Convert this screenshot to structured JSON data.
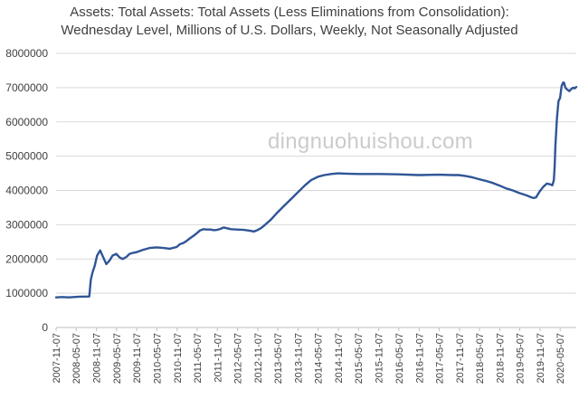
{
  "chart_data": {
    "type": "line",
    "title_line1": "Assets: Total Assets: Total Assets (Less Eliminations from Consolidation):",
    "title_line2": "Wednesday Level, Millions of U.S. Dollars, Weekly, Not Seasonally Adjusted",
    "xlabel": "",
    "ylabel": "",
    "ylim": [
      0,
      8000000
    ],
    "yticks": [
      0,
      1000000,
      2000000,
      3000000,
      4000000,
      5000000,
      6000000,
      7000000,
      8000000
    ],
    "xlim": [
      "2007-11-07",
      "2020-09-30"
    ],
    "xticks": [
      "2007-11-07",
      "2008-05-07",
      "2008-11-07",
      "2009-05-07",
      "2009-11-07",
      "2010-05-07",
      "2010-11-07",
      "2011-05-07",
      "2011-11-07",
      "2012-05-07",
      "2012-11-07",
      "2013-05-07",
      "2013-11-07",
      "2014-05-07",
      "2014-11-07",
      "2015-05-07",
      "2015-11-07",
      "2016-05-07",
      "2016-11-07",
      "2017-05-07",
      "2017-11-07",
      "2018-05-07",
      "2018-11-07",
      "2019-05-07",
      "2019-11-07",
      "2020-05-07"
    ],
    "grid": "horizontal",
    "legend": "none",
    "line_color": "#2f5597",
    "series": [
      {
        "x": [
          "2007-11-07",
          "2008-01-01",
          "2008-03-01",
          "2008-06-01",
          "2008-09-03",
          "2008-09-17",
          "2008-10-01",
          "2008-10-22",
          "2008-11-12",
          "2008-12-10",
          "2009-01-07",
          "2009-02-04",
          "2009-03-04",
          "2009-04-01",
          "2009-05-06",
          "2009-06-03",
          "2009-07-01",
          "2009-08-05",
          "2009-09-02",
          "2009-10-07",
          "2009-11-04",
          "2009-12-02",
          "2010-01-06",
          "2010-03-03",
          "2010-05-05",
          "2010-07-07",
          "2010-09-01",
          "2010-11-03",
          "2010-12-01",
          "2011-01-05",
          "2011-02-02",
          "2011-03-02",
          "2011-04-06",
          "2011-05-04",
          "2011-06-01",
          "2011-07-06",
          "2011-08-03",
          "2011-09-07",
          "2011-10-05",
          "2011-11-02",
          "2011-12-07",
          "2012-01-04",
          "2012-03-07",
          "2012-05-02",
          "2012-07-04",
          "2012-09-05",
          "2012-10-03",
          "2012-11-07",
          "2012-12-05",
          "2013-01-02",
          "2013-03-06",
          "2013-05-01",
          "2013-07-03",
          "2013-09-04",
          "2013-11-06",
          "2014-01-08",
          "2014-03-05",
          "2014-05-07",
          "2014-07-02",
          "2014-09-03",
          "2014-11-05",
          "2015-01-07",
          "2015-05-06",
          "2015-11-04",
          "2016-05-04",
          "2016-11-02",
          "2017-05-03",
          "2017-09-06",
          "2017-11-01",
          "2018-01-03",
          "2018-03-07",
          "2018-05-02",
          "2018-07-04",
          "2018-09-05",
          "2018-11-07",
          "2019-01-02",
          "2019-03-06",
          "2019-05-01",
          "2019-07-03",
          "2019-08-28",
          "2019-09-11",
          "2019-10-02",
          "2019-10-30",
          "2019-12-04",
          "2020-01-08",
          "2020-02-05",
          "2020-02-26",
          "2020-03-11",
          "2020-03-18",
          "2020-03-25",
          "2020-04-08",
          "2020-04-22",
          "2020-05-06",
          "2020-05-20",
          "2020-06-03",
          "2020-06-10",
          "2020-06-24",
          "2020-07-08",
          "2020-07-29",
          "2020-08-12",
          "2020-09-02",
          "2020-09-16",
          "2020-09-30"
        ],
        "values": [
          880000,
          890000,
          880000,
          900000,
          905000,
          1400000,
          1600000,
          1800000,
          2100000,
          2250000,
          2050000,
          1850000,
          1950000,
          2100000,
          2150000,
          2050000,
          2000000,
          2060000,
          2150000,
          2180000,
          2200000,
          2230000,
          2270000,
          2320000,
          2340000,
          2320000,
          2300000,
          2350000,
          2430000,
          2470000,
          2530000,
          2600000,
          2680000,
          2750000,
          2830000,
          2870000,
          2860000,
          2860000,
          2840000,
          2850000,
          2880000,
          2920000,
          2870000,
          2860000,
          2850000,
          2820000,
          2800000,
          2850000,
          2900000,
          2970000,
          3150000,
          3350000,
          3550000,
          3750000,
          3950000,
          4150000,
          4300000,
          4400000,
          4450000,
          4480000,
          4500000,
          4490000,
          4480000,
          4480000,
          4470000,
          4450000,
          4460000,
          4450000,
          4450000,
          4420000,
          4380000,
          4330000,
          4280000,
          4220000,
          4140000,
          4060000,
          4000000,
          3930000,
          3860000,
          3790000,
          3780000,
          3800000,
          3950000,
          4100000,
          4200000,
          4180000,
          4150000,
          4300000,
          4700000,
          5300000,
          6100000,
          6600000,
          6700000,
          7050000,
          7150000,
          7150000,
          7000000,
          6950000,
          6900000,
          6950000,
          7000000,
          6980000,
          7020000
        ]
      }
    ]
  }
}
